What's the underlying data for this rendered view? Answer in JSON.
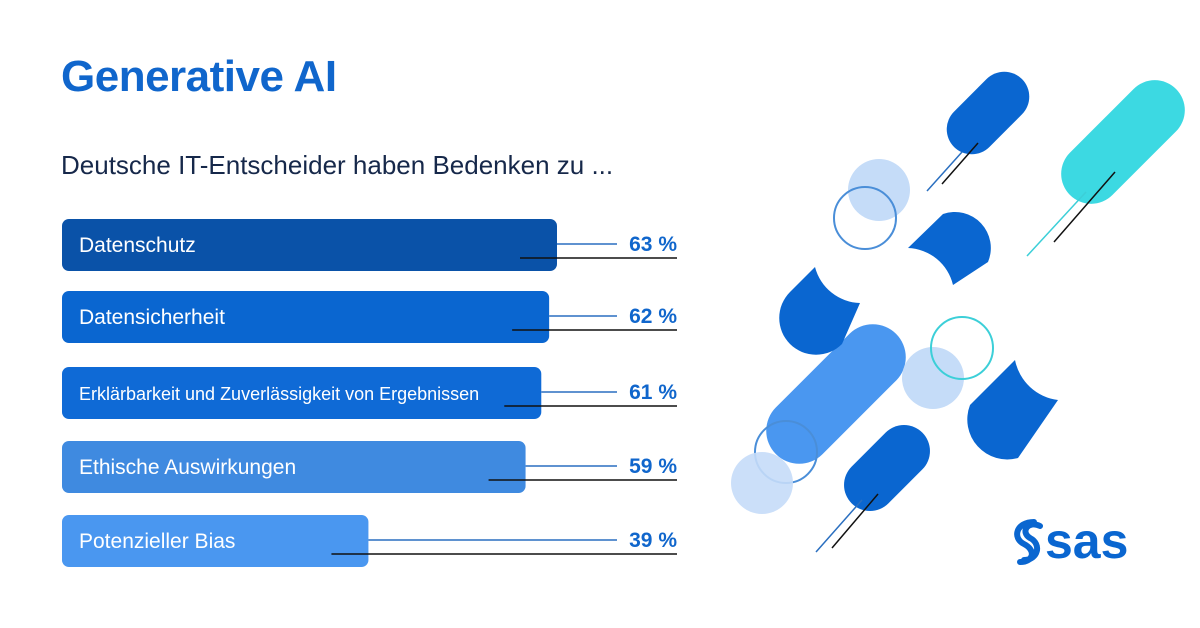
{
  "title": "Generative AI",
  "subtitle": "Deutsche IT-Entscheider haben Bedenken zu ...",
  "chart_data": {
    "type": "bar",
    "orientation": "horizontal",
    "categories": [
      "Datenschutz",
      "Datensicherheit",
      "Erklärbarkeit und Zuverlässigkeit von Ergebnissen",
      "Ethische Auswirkungen",
      "Potenzieller Bias"
    ],
    "values": [
      63,
      62,
      61,
      59,
      39
    ],
    "value_labels": [
      "63 %",
      "62 %",
      "61 %",
      "59 %",
      "39 %"
    ],
    "unit": "%",
    "bar_colors": [
      "#0A52A8",
      "#0A66D0",
      "#0F6AD6",
      "#3F8AE0",
      "#4A97F0"
    ],
    "label_color": "#1066CC",
    "grid": false
  },
  "logo": {
    "text": "sas",
    "color": "#0A66D0"
  }
}
